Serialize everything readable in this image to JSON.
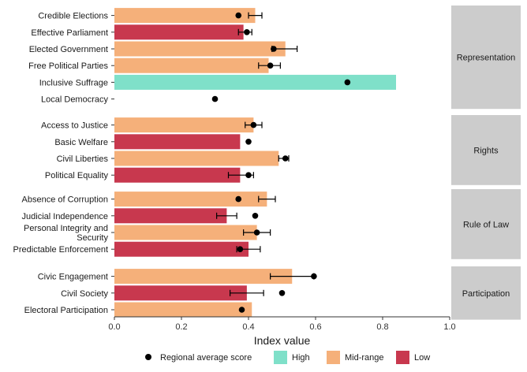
{
  "chart_data": {
    "type": "bar",
    "orientation": "horizontal",
    "xlabel": "Index value",
    "xlim": [
      0,
      1
    ],
    "xticks": [
      "0.0",
      "0.2",
      "0.4",
      "0.6",
      "0.8",
      "1.0"
    ],
    "grid": false,
    "legend_placement": "bottom",
    "colors": {
      "High": "#7fe0c9",
      "Mid-range": "#f5b07a",
      "Low": "#c8384e",
      "point": "#000000",
      "strip": "#cccccc"
    },
    "legend": [
      {
        "label": "Regional average score",
        "kind": "point"
      },
      {
        "label": "High",
        "kind": "fill",
        "key": "High"
      },
      {
        "label": "Mid-range",
        "kind": "fill",
        "key": "Mid-range"
      },
      {
        "label": "Low",
        "kind": "fill",
        "key": "Low"
      }
    ],
    "panels": [
      {
        "label": "Representation",
        "items": [
          {
            "name": "Credible Elections",
            "value": 0.42,
            "category": "Mid-range",
            "lo": 0.4,
            "hi": 0.44,
            "avg": 0.37
          },
          {
            "name": "Effective Parliament",
            "value": 0.385,
            "category": "Low",
            "lo": 0.37,
            "hi": 0.41,
            "avg": 0.395
          },
          {
            "name": "Elected Government",
            "value": 0.51,
            "category": "Mid-range",
            "lo": 0.47,
            "hi": 0.545,
            "avg": 0.475
          },
          {
            "name": "Free Political Parties",
            "value": 0.46,
            "category": "Mid-range",
            "lo": 0.43,
            "hi": 0.495,
            "avg": 0.465
          },
          {
            "name": "Inclusive Suffrage",
            "value": 0.84,
            "category": "High",
            "lo": null,
            "hi": null,
            "avg": 0.695
          },
          {
            "name": "Local Democracy",
            "value": null,
            "category": null,
            "lo": null,
            "hi": null,
            "avg": 0.3
          }
        ]
      },
      {
        "label": "Rights",
        "items": [
          {
            "name": "Access to Justice",
            "value": 0.415,
            "category": "Mid-range",
            "lo": 0.39,
            "hi": 0.44,
            "avg": 0.415
          },
          {
            "name": "Basic Welfare",
            "value": 0.375,
            "category": "Low",
            "lo": null,
            "hi": null,
            "avg": 0.4
          },
          {
            "name": "Civil Liberties",
            "value": 0.49,
            "category": "Mid-range",
            "lo": 0.49,
            "hi": 0.52,
            "avg": 0.51
          },
          {
            "name": "Political Equality",
            "value": 0.375,
            "category": "Low",
            "lo": 0.34,
            "hi": 0.415,
            "avg": 0.4
          }
        ]
      },
      {
        "label": "Rule of Law",
        "items": [
          {
            "name": "Absence of Corruption",
            "value": 0.455,
            "category": "Mid-range",
            "lo": 0.43,
            "hi": 0.48,
            "avg": 0.37
          },
          {
            "name": "Judicial Independence",
            "value": 0.335,
            "category": "Low",
            "lo": 0.305,
            "hi": 0.365,
            "avg": 0.42
          },
          {
            "name": "Personal Integrity and Security",
            "value": 0.425,
            "category": "Mid-range",
            "lo": 0.385,
            "hi": 0.465,
            "avg": 0.425
          },
          {
            "name": "Predictable Enforcement",
            "value": 0.4,
            "category": "Low",
            "lo": 0.365,
            "hi": 0.435,
            "avg": 0.375
          }
        ]
      },
      {
        "label": "Participation",
        "items": [
          {
            "name": "Civic Engagement",
            "value": 0.53,
            "category": "Mid-range",
            "lo": 0.465,
            "hi": 0.595,
            "avg": 0.595
          },
          {
            "name": "Civil Society",
            "value": 0.395,
            "category": "Low",
            "lo": 0.345,
            "hi": 0.445,
            "avg": 0.5
          },
          {
            "name": "Electoral Participation",
            "value": 0.41,
            "category": "Mid-range",
            "lo": null,
            "hi": null,
            "avg": 0.38
          }
        ]
      }
    ]
  }
}
